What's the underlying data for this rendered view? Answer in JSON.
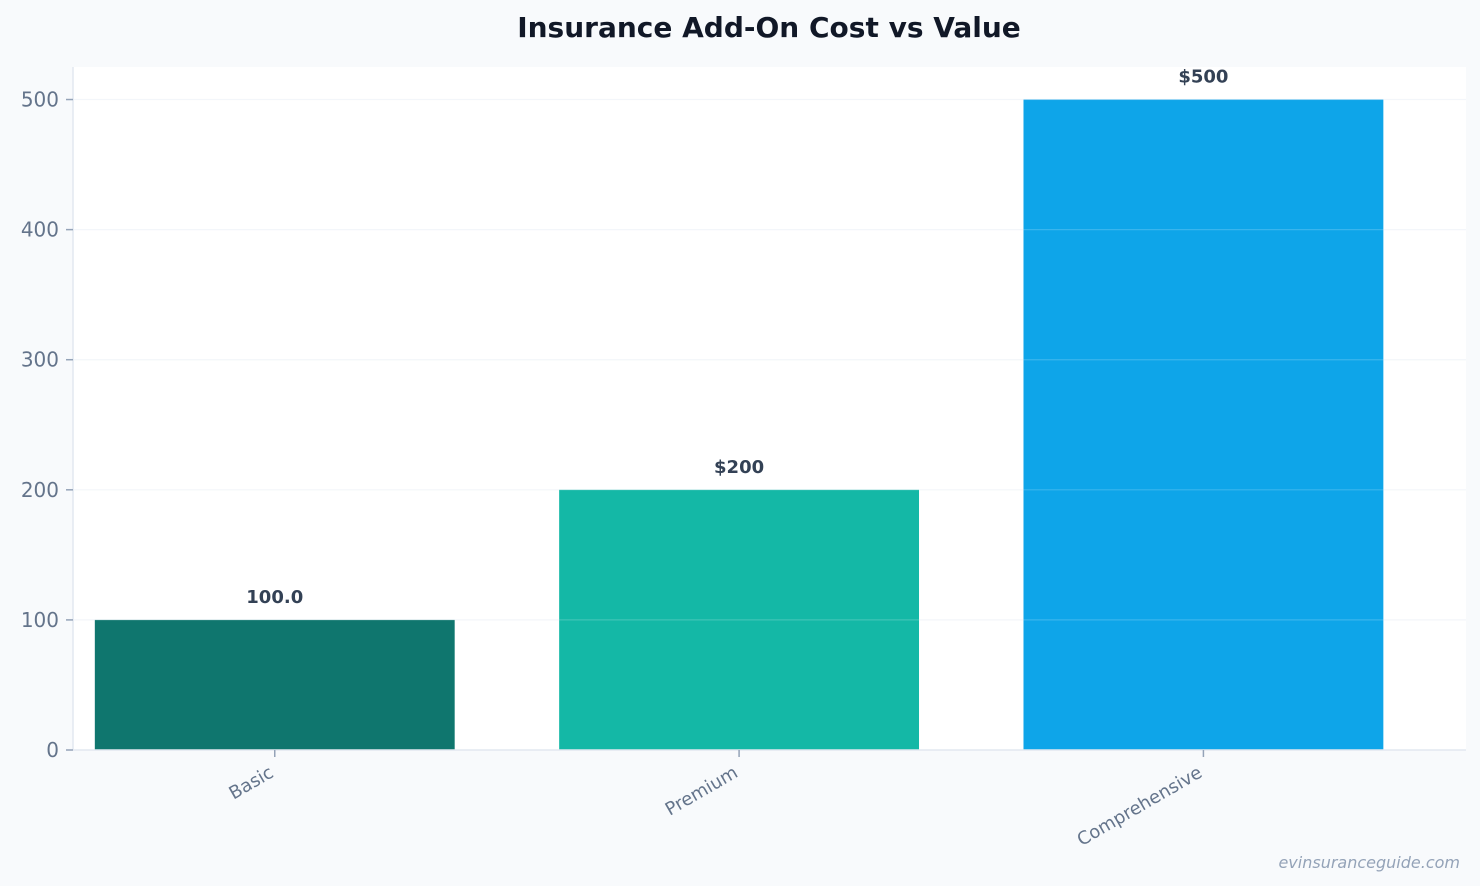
{
  "chart_data": {
    "type": "bar",
    "title": "Insurance Add-On Cost vs Value",
    "xlabel": "",
    "ylabel": "",
    "categories": [
      "Basic",
      "Premium",
      "Comprehensive"
    ],
    "values": [
      100,
      200,
      500
    ],
    "data_labels": [
      "100.0",
      "$200",
      "$500"
    ],
    "colors": [
      "#0f766e",
      "#14b8a6",
      "#0ea5e9"
    ],
    "ylim": [
      0,
      525
    ],
    "yticks": [
      0,
      100,
      200,
      300,
      400,
      500
    ],
    "grid": true,
    "legend": "none"
  },
  "watermark": "evinsuranceguide.com"
}
